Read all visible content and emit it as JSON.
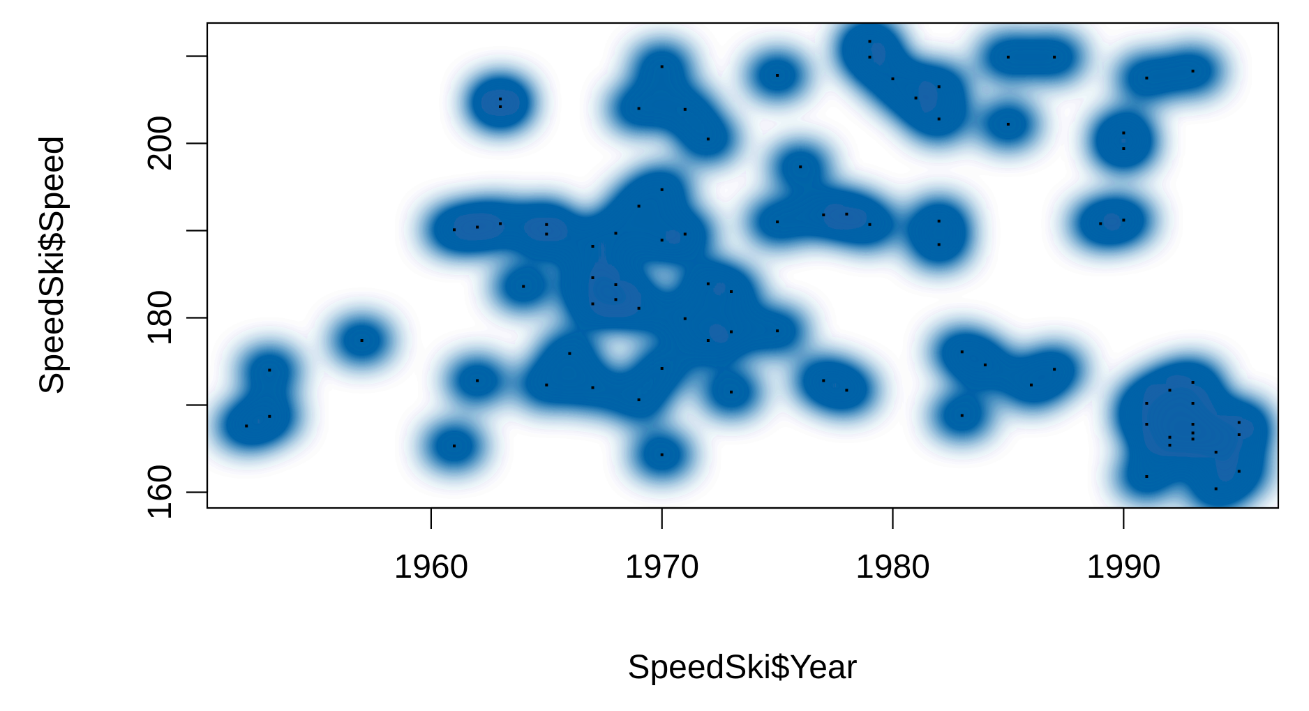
{
  "chart_data": {
    "type": "scatter",
    "title": "",
    "xlabel": "SpeedSki$Year",
    "ylabel": "SpeedSki$Speed",
    "xlim": [
      1950.3,
      1996.7
    ],
    "ylim": [
      158.2,
      213.8
    ],
    "xticks": [
      1960,
      1970,
      1980,
      1990
    ],
    "yticks": [
      160,
      180,
      200
    ],
    "grid": false,
    "legend": "none",
    "color": "#0a62a8",
    "point_color": "#000000",
    "points": [
      [
        1952,
        167.6
      ],
      [
        1953,
        168.7
      ],
      [
        1953,
        174.0
      ],
      [
        1957,
        177.4
      ],
      [
        1961,
        165.3
      ],
      [
        1961,
        190.1
      ],
      [
        1962,
        172.8
      ],
      [
        1962,
        190.4
      ],
      [
        1963,
        190.8
      ],
      [
        1963,
        204.2
      ],
      [
        1963,
        205.1
      ],
      [
        1964,
        183.6
      ],
      [
        1965,
        172.3
      ],
      [
        1965,
        189.6
      ],
      [
        1965,
        190.7
      ],
      [
        1966,
        175.9
      ],
      [
        1967,
        172.0
      ],
      [
        1967,
        181.6
      ],
      [
        1967,
        184.6
      ],
      [
        1967,
        188.2
      ],
      [
        1968,
        182.1
      ],
      [
        1968,
        183.8
      ],
      [
        1968,
        189.7
      ],
      [
        1969,
        170.6
      ],
      [
        1969,
        181.1
      ],
      [
        1969,
        192.8
      ],
      [
        1969,
        204.0
      ],
      [
        1970,
        164.3
      ],
      [
        1970,
        174.2
      ],
      [
        1970,
        188.9
      ],
      [
        1970,
        194.7
      ],
      [
        1970,
        208.8
      ],
      [
        1971,
        179.9
      ],
      [
        1971,
        189.6
      ],
      [
        1971,
        203.9
      ],
      [
        1972,
        177.4
      ],
      [
        1972,
        183.9
      ],
      [
        1972,
        200.5
      ],
      [
        1973,
        171.5
      ],
      [
        1973,
        178.4
      ],
      [
        1973,
        183.0
      ],
      [
        1975,
        178.5
      ],
      [
        1975,
        191.0
      ],
      [
        1975,
        207.8
      ],
      [
        1976,
        197.3
      ],
      [
        1977,
        172.8
      ],
      [
        1977,
        191.8
      ],
      [
        1978,
        171.7
      ],
      [
        1978,
        191.9
      ],
      [
        1979,
        190.7
      ],
      [
        1979,
        209.9
      ],
      [
        1979,
        211.7
      ],
      [
        1980,
        207.4
      ],
      [
        1981,
        205.2
      ],
      [
        1982,
        188.4
      ],
      [
        1982,
        191.1
      ],
      [
        1982,
        202.8
      ],
      [
        1982,
        206.5
      ],
      [
        1983,
        168.8
      ],
      [
        1983,
        176.1
      ],
      [
        1984,
        174.6
      ],
      [
        1985,
        202.2
      ],
      [
        1985,
        209.9
      ],
      [
        1986,
        172.3
      ],
      [
        1987,
        174.1
      ],
      [
        1987,
        209.9
      ],
      [
        1989,
        190.8
      ],
      [
        1990,
        191.2
      ],
      [
        1990,
        199.4
      ],
      [
        1990,
        201.2
      ],
      [
        1991,
        161.8
      ],
      [
        1991,
        167.8
      ],
      [
        1991,
        170.2
      ],
      [
        1991,
        207.5
      ],
      [
        1992,
        165.4
      ],
      [
        1992,
        166.3
      ],
      [
        1992,
        171.7
      ],
      [
        1993,
        166.1
      ],
      [
        1993,
        166.8
      ],
      [
        1993,
        167.8
      ],
      [
        1993,
        170.2
      ],
      [
        1993,
        172.6
      ],
      [
        1993,
        208.3
      ],
      [
        1994,
        160.4
      ],
      [
        1994,
        164.6
      ],
      [
        1995,
        162.4
      ],
      [
        1995,
        166.6
      ],
      [
        1995,
        168.0
      ]
    ]
  }
}
